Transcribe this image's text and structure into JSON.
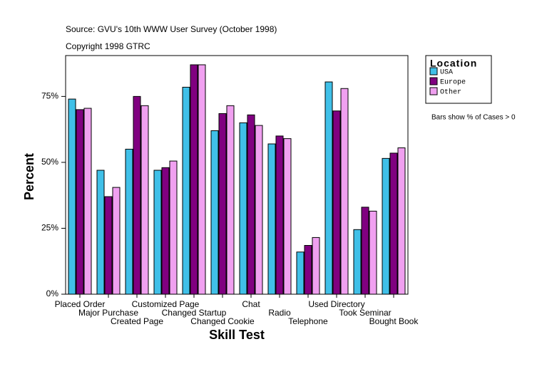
{
  "chart_data": {
    "type": "bar",
    "subtitle": "Source: GVU's 10th WWW User Survey (October 1998)",
    "copyright": "Copyright 1998 GTRC",
    "note": "Bars show % of Cases > 0",
    "x_label": "Skill Test",
    "y_label": "Percent",
    "legend_title": "Location",
    "categories": [
      "Placed Order",
      "Major Purchase",
      "Created Page",
      "Customized Page",
      "Changed Startup",
      "Changed Cookie",
      "Chat",
      "Radio",
      "Telephone",
      "Used Directory",
      "Took Seminar",
      "Bought Book"
    ],
    "series": [
      {
        "name": "USA",
        "color": "#40c0e8",
        "values": [
          74,
          47,
          55,
          47,
          78.5,
          62,
          65,
          57,
          16,
          80.5,
          24.5,
          51.5
        ]
      },
      {
        "name": "Europe",
        "color": "#800080",
        "values": [
          70,
          37,
          75,
          48,
          87,
          68.5,
          68,
          60,
          18.5,
          69.5,
          33,
          53.5
        ]
      },
      {
        "name": "Other",
        "color": "#f0a0f0",
        "values": [
          70.5,
          40.5,
          71.5,
          50.5,
          87,
          71.5,
          64,
          59,
          21.5,
          78,
          31.5,
          55.5
        ]
      }
    ],
    "ylim": [
      0,
      90.5
    ],
    "yticks": [
      {
        "value": 0,
        "label": "0%"
      },
      {
        "value": 25,
        "label": "25%"
      },
      {
        "value": 50,
        "label": "50%"
      },
      {
        "value": 75,
        "label": "75%"
      }
    ],
    "legend": "right"
  }
}
